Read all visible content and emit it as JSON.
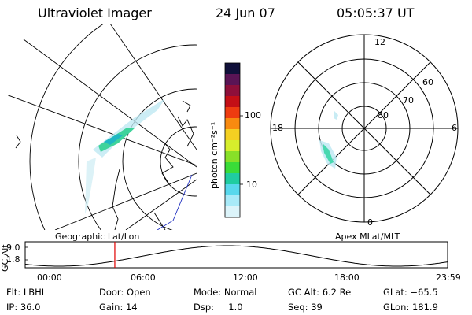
{
  "header": {
    "title": "Ultraviolet Imager",
    "date": "24 Jun 07",
    "time": "05:05:37  UT"
  },
  "colorbar": {
    "label": "photon cm⁻²s⁻¹",
    "ticks": [
      "100",
      "10"
    ],
    "colors": [
      "#10103a",
      "#5a1455",
      "#8e0f3a",
      "#c40f16",
      "#ee3c10",
      "#f88a10",
      "#f4d022",
      "#d6ee2c",
      "#88e028",
      "#3adc38",
      "#20cca0",
      "#58d8ec",
      "#a8eaf8",
      "#dcf4fa"
    ]
  },
  "left_map": {
    "caption": "Geographic Lat/Lon"
  },
  "right_map": {
    "caption": "Apex  MLat/MLT",
    "mlt_labels": {
      "top": "12",
      "left": "18",
      "right": "6",
      "bottom": "0"
    },
    "mlat_labels": [
      "60",
      "70",
      "80"
    ]
  },
  "timeline": {
    "ylabel": "GC Alt",
    "y_ticks": [
      "9.0",
      "1.8"
    ],
    "x_ticks": [
      "00:00",
      "06:00",
      "12:00",
      "18:00",
      "23:59"
    ],
    "marker_fraction": 0.2122,
    "marker_color": "#e00000"
  },
  "info": {
    "row1": {
      "flt": "Flt: LBHL",
      "door": "Door: Open",
      "mode": "Mode: Normal",
      "gcalt": "GC Alt: 6.2 Re",
      "glat": "GLat: −65.5"
    },
    "row2": {
      "ip": "IP: 36.0",
      "gain": "Gain: 14",
      "dsp": "Dsp:     1.0",
      "seq": "Seq: 39",
      "glon": "GLon: 181.9"
    }
  }
}
